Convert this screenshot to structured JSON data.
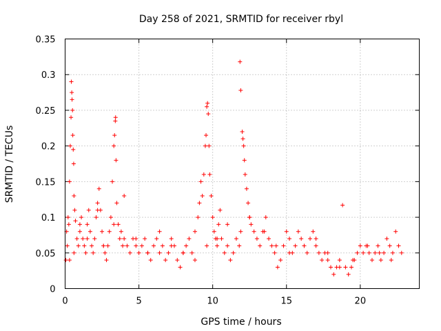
{
  "chart_data": {
    "type": "scatter",
    "title": "Day 258 of 2021, SRMTID for receiver rbyl",
    "xlabel": "GPS time / hours",
    "ylabel": "SRMTID / TECUs",
    "xlim": [
      0,
      24
    ],
    "ylim": [
      0,
      0.35
    ],
    "xticks": [
      0,
      5,
      10,
      15,
      20
    ],
    "yticks": [
      0,
      0.05,
      0.1,
      0.15,
      0.2,
      0.25,
      0.3,
      0.35
    ],
    "xtick_labels": [
      "0",
      "5",
      "10",
      "15",
      "20"
    ],
    "ytick_labels": [
      "0",
      "0.05",
      "0.1",
      "0.15",
      "0.2",
      "0.25",
      "0.3",
      "0.35"
    ],
    "grid": true,
    "marker": "+",
    "color": "#ff0000",
    "series": [
      {
        "name": "SRMTID",
        "x": [
          0.05,
          0.1,
          0.15,
          0.2,
          0.25,
          0.3,
          0.35,
          0.4,
          0.42,
          0.45,
          0.47,
          0.5,
          0.52,
          0.55,
          0.58,
          0.6,
          0.65,
          0.7,
          0.8,
          0.9,
          1.0,
          1.1,
          1.2,
          1.3,
          1.4,
          1.5,
          1.6,
          1.7,
          1.8,
          1.9,
          2.0,
          2.1,
          2.2,
          2.3,
          2.4,
          2.5,
          2.6,
          2.7,
          2.8,
          2.9,
          3.0,
          3.1,
          3.2,
          3.3,
          3.35,
          3.4,
          3.42,
          3.45,
          3.5,
          3.6,
          3.7,
          3.8,
          3.9,
          4.0,
          4.2,
          4.4,
          4.6,
          4.8,
          5.0,
          5.2,
          5.4,
          5.6,
          5.8,
          6.0,
          6.2,
          6.4,
          6.6,
          6.8,
          7.0,
          7.2,
          7.4,
          7.6,
          7.8,
          8.0,
          8.2,
          8.4,
          8.6,
          8.8,
          9.0,
          9.1,
          9.2,
          9.3,
          9.4,
          9.5,
          9.55,
          9.6,
          9.65,
          9.7,
          9.75,
          9.8,
          9.9,
          10.0,
          10.1,
          10.2,
          10.3,
          10.4,
          10.5,
          10.6,
          10.8,
          11.0,
          11.2,
          11.4,
          11.6,
          11.8,
          11.85,
          11.9,
          12.0,
          12.05,
          12.1,
          12.15,
          12.2,
          12.3,
          12.4,
          12.5,
          12.6,
          12.8,
          13.0,
          13.2,
          13.4,
          13.6,
          13.8,
          14.0,
          14.2,
          14.4,
          14.6,
          14.8,
          15.0,
          15.2,
          15.4,
          15.6,
          15.8,
          16.0,
          16.2,
          16.4,
          16.6,
          16.8,
          17.0,
          17.2,
          17.4,
          17.6,
          17.8,
          18.0,
          18.2,
          18.4,
          18.6,
          18.8,
          19.0,
          19.2,
          19.4,
          19.6,
          19.8,
          20.0,
          20.2,
          20.4,
          20.6,
          20.8,
          21.0,
          21.2,
          21.4,
          21.6,
          21.8,
          22.0,
          22.2,
          22.4,
          22.6,
          22.8,
          0.3,
          0.6,
          1.0,
          1.5,
          2.2,
          2.6,
          3.3,
          4.0,
          4.8,
          5.6,
          6.4,
          7.2,
          8.0,
          8.8,
          9.6,
          10.3,
          11.0,
          11.9,
          12.5,
          13.5,
          14.3,
          15.2,
          16.2,
          17.0,
          17.8,
          18.6,
          19.5,
          20.5,
          21.3,
          22.1
        ],
        "y": [
          0.04,
          0.08,
          0.06,
          0.1,
          0.09,
          0.15,
          0.2,
          0.24,
          0.29,
          0.275,
          0.265,
          0.25,
          0.215,
          0.195,
          0.175,
          0.13,
          0.11,
          0.095,
          0.07,
          0.06,
          0.08,
          0.1,
          0.07,
          0.06,
          0.05,
          0.09,
          0.11,
          0.08,
          0.06,
          0.05,
          0.07,
          0.1,
          0.12,
          0.14,
          0.11,
          0.08,
          0.06,
          0.05,
          0.04,
          0.06,
          0.08,
          0.1,
          0.15,
          0.2,
          0.215,
          0.235,
          0.24,
          0.18,
          0.12,
          0.09,
          0.07,
          0.08,
          0.06,
          0.07,
          0.06,
          0.05,
          0.07,
          0.06,
          0.05,
          0.06,
          0.07,
          0.05,
          0.04,
          0.06,
          0.07,
          0.05,
          0.06,
          0.04,
          0.05,
          0.07,
          0.06,
          0.04,
          0.03,
          0.05,
          0.06,
          0.07,
          0.05,
          0.08,
          0.1,
          0.12,
          0.15,
          0.13,
          0.16,
          0.2,
          0.215,
          0.255,
          0.26,
          0.245,
          0.2,
          0.16,
          0.13,
          0.1,
          0.08,
          0.07,
          0.06,
          0.09,
          0.11,
          0.07,
          0.05,
          0.06,
          0.04,
          0.05,
          0.07,
          0.06,
          0.318,
          0.278,
          0.22,
          0.21,
          0.2,
          0.18,
          0.16,
          0.14,
          0.12,
          0.1,
          0.09,
          0.08,
          0.07,
          0.06,
          0.08,
          0.1,
          0.07,
          0.06,
          0.05,
          0.03,
          0.04,
          0.06,
          0.08,
          0.07,
          0.05,
          0.06,
          0.08,
          0.07,
          0.06,
          0.05,
          0.07,
          0.08,
          0.06,
          0.05,
          0.04,
          0.05,
          0.04,
          0.03,
          0.02,
          0.03,
          0.04,
          0.117,
          0.03,
          0.02,
          0.03,
          0.04,
          0.05,
          0.06,
          0.05,
          0.06,
          0.05,
          0.04,
          0.05,
          0.06,
          0.04,
          0.05,
          0.07,
          0.06,
          0.05,
          0.08,
          0.06,
          0.05,
          0.04,
          0.05,
          0.09,
          0.07,
          0.11,
          0.06,
          0.09,
          0.13,
          0.07,
          0.05,
          0.08,
          0.06,
          0.05,
          0.04,
          0.06,
          0.07,
          0.09,
          0.08,
          0.1,
          0.08,
          0.06,
          0.05,
          0.06,
          0.07,
          0.05,
          0.03,
          0.04,
          0.06,
          0.05,
          0.04
        ]
      }
    ]
  }
}
